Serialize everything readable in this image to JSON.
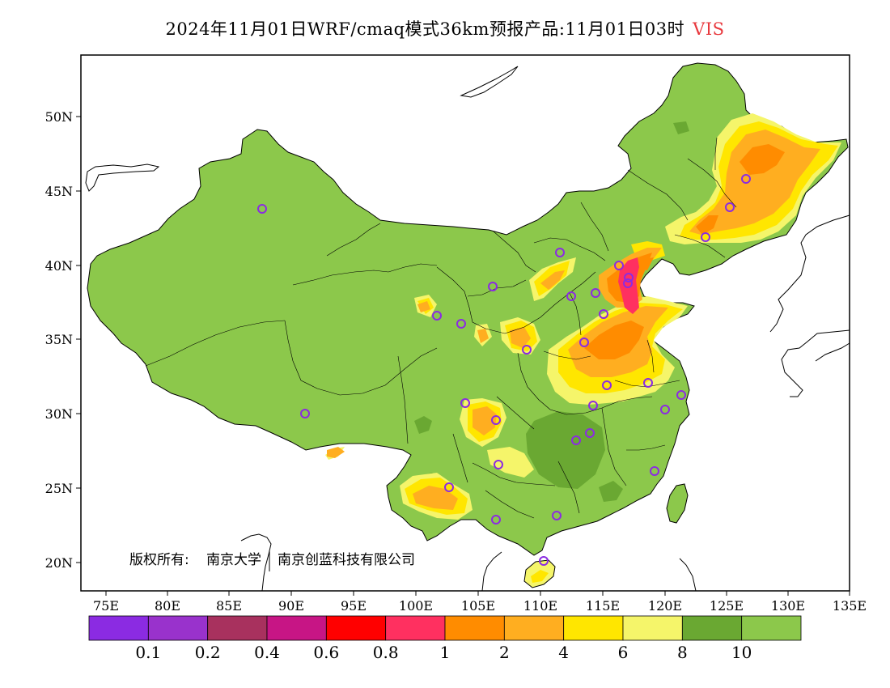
{
  "title": {
    "text": "2024年11月01日WRF/cmaq模式36km预报产品:11月01日03时",
    "variable": "VIS"
  },
  "axes": {
    "lon_ticks": [
      "75E",
      "80E",
      "85E",
      "90E",
      "95E",
      "100E",
      "105E",
      "110E",
      "115E",
      "120E",
      "125E",
      "130E",
      "135E"
    ],
    "lat_ticks": [
      "50N",
      "45N",
      "40N",
      "35N",
      "30N",
      "25N",
      "20N"
    ]
  },
  "copyright": {
    "owner_label": "版权所有:",
    "org1": "南京大学",
    "org2": "南京创蓝科技有限公司"
  },
  "colorbar": {
    "colors": [
      "#8b2be2",
      "#9932cc",
      "#a8315e",
      "#c71585",
      "#ff0000",
      "#ff3060",
      "#ff8c00",
      "#ffae20",
      "#ffe600",
      "#f5f56a",
      "#6aa832",
      "#8cc84b"
    ],
    "labels": [
      "0.1",
      "0.2",
      "0.4",
      "0.6",
      "0.8",
      "1",
      "2",
      "4",
      "6",
      "8",
      "10"
    ]
  },
  "colors": {
    "land_clear": "#8cc84b",
    "land_dark": "#6aa832",
    "haze_light": "#f5f56a",
    "haze": "#ffe600",
    "moderate": "#ffae20",
    "heavy": "#ff8c00",
    "severe": "#ff3060",
    "station_marker": "#8b2be2"
  },
  "stations": {
    "count": 36
  }
}
